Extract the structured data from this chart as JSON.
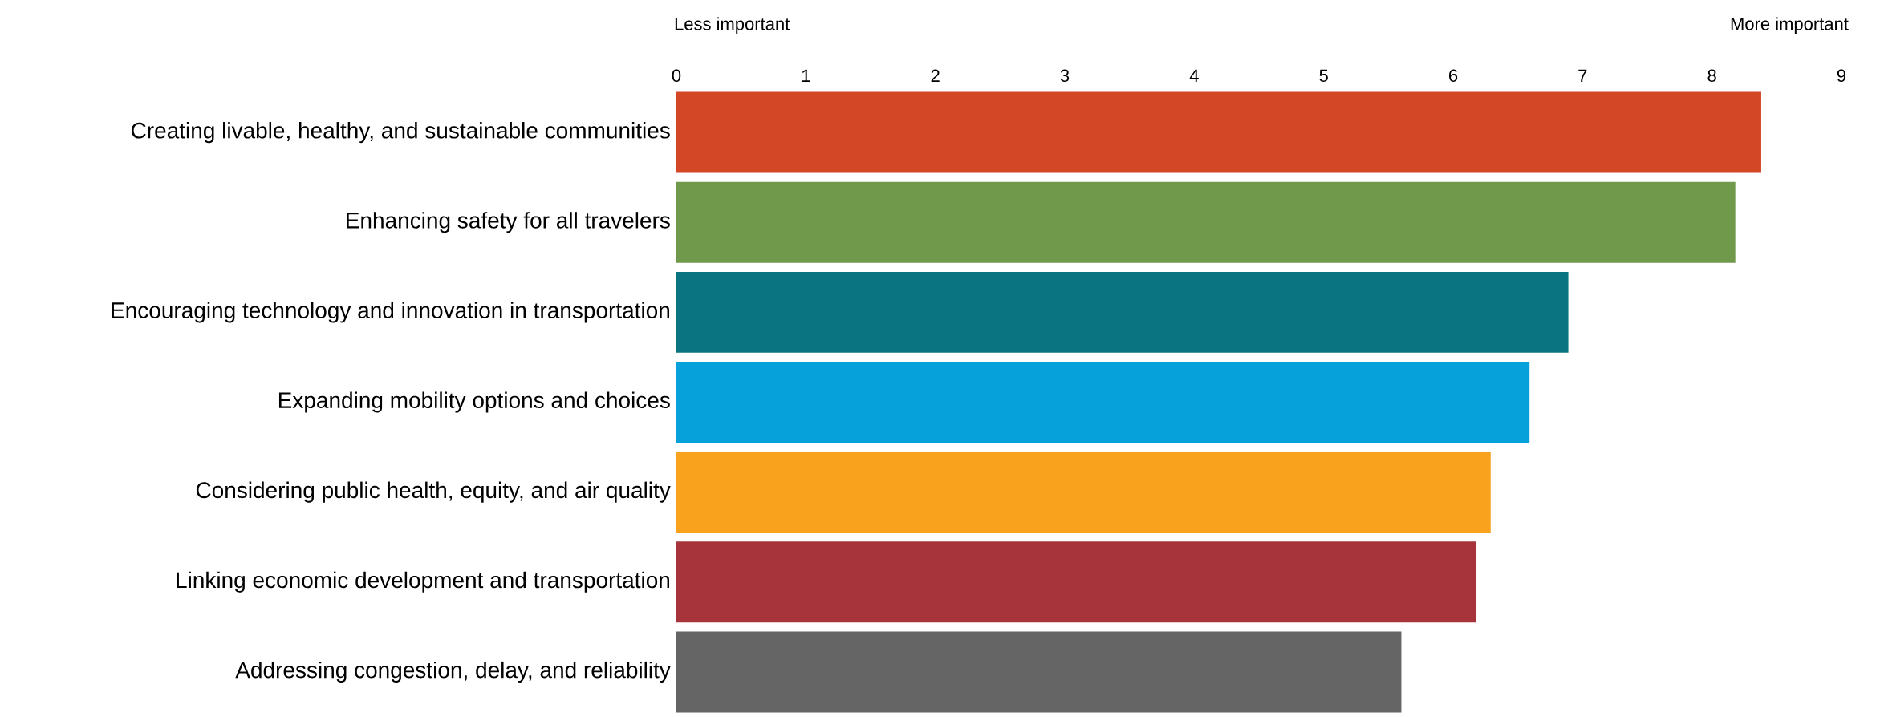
{
  "chart_data": {
    "type": "bar",
    "orientation": "horizontal",
    "categories": [
      "Creating livable, healthy, and sustainable communities",
      "Enhancing safety for all travelers",
      "Encouraging technology and innovation in transportation",
      "Expanding mobility options and choices",
      "Considering public health, equity, and air quality",
      "Linking economic development and transportation",
      "Addressing congestion, delay, and reliability"
    ],
    "values": [
      8.38,
      8.18,
      6.89,
      6.59,
      6.29,
      6.18,
      5.6
    ],
    "colors": [
      "#d34727",
      "#70994b",
      "#0a7580",
      "#06a0da",
      "#f9a21e",
      "#a8343b",
      "#656565"
    ],
    "xlim": [
      0,
      9
    ],
    "xticks": [
      0,
      1,
      2,
      3,
      4,
      5,
      6,
      7,
      8,
      9
    ],
    "annotations": [
      "Less important",
      "More important"
    ]
  }
}
